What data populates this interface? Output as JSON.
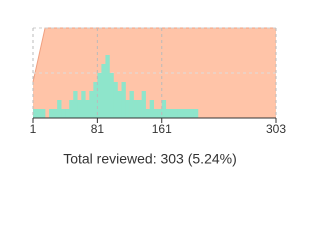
{
  "chart_data": {
    "type": "area",
    "caption": "Total reviewed: 303 (5.24%)",
    "xlim": [
      1,
      303
    ],
    "xticks": [
      1,
      81,
      161,
      303
    ],
    "ylim": [
      0,
      10
    ],
    "y2lim": [
      0,
      100
    ],
    "grid": true,
    "series": [
      {
        "color": "#8ee5cb",
        "x": [
          1,
          6,
          11,
          16,
          21,
          26,
          31,
          36,
          41,
          46,
          51,
          56,
          61,
          66,
          71,
          76,
          81,
          86,
          91,
          96,
          101,
          106,
          111,
          116,
          121,
          126,
          131,
          136,
          141,
          146,
          151,
          156,
          161,
          166,
          171,
          176,
          181,
          186,
          191,
          196,
          201,
          206
        ],
        "values": [
          1,
          1,
          1,
          0,
          1,
          1,
          2,
          1,
          1,
          2,
          3,
          2,
          3,
          2,
          3,
          4,
          5,
          6,
          7,
          5,
          4,
          3,
          4,
          2,
          3,
          2,
          2,
          3,
          1,
          2,
          1,
          1,
          2,
          1,
          1,
          1,
          1,
          1,
          1,
          1,
          1,
          0
        ]
      },
      {
        "color": "#ffc4a8",
        "axis": "y2",
        "x": [
          1,
          16,
          303
        ],
        "values": [
          40,
          100,
          100
        ]
      }
    ]
  }
}
